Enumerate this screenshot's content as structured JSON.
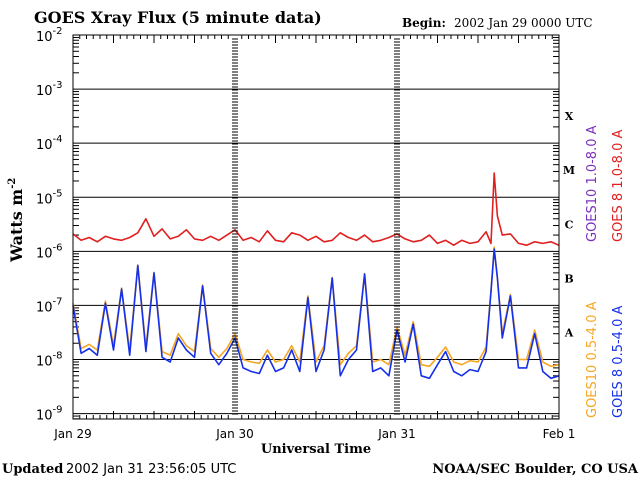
{
  "chart_data": {
    "type": "line",
    "title": "GOES Xray Flux (5 minute data)",
    "begin_label": "Begin:",
    "begin_value": "2002 Jan 29 0000 UTC",
    "xlabel": "Universal Time",
    "ylabel": "Watts m",
    "ylabel_exp": "-2",
    "x_ticks": [
      "Jan 29",
      "Jan 30",
      "Jan 31",
      "Feb 1"
    ],
    "x_domain_days": [
      0,
      3
    ],
    "y_scale": "log",
    "y_ticks": [
      {
        "base": "10",
        "exp": "-2"
      },
      {
        "base": "10",
        "exp": "-3"
      },
      {
        "base": "10",
        "exp": "-4"
      },
      {
        "base": "10",
        "exp": "-5"
      },
      {
        "base": "10",
        "exp": "-6"
      },
      {
        "base": "10",
        "exp": "-7"
      },
      {
        "base": "10",
        "exp": "-8"
      },
      {
        "base": "10",
        "exp": "-9"
      }
    ],
    "ylim_exp": [
      -9.1,
      -2
    ],
    "grid": "horizontal",
    "flare_classes": [
      "X",
      "M",
      "C",
      "B",
      "A"
    ],
    "legend_right": [
      {
        "label": "GOES10 1.0-8.0 A",
        "color": "#7B2FBE"
      },
      {
        "label": "GOES 8 1.0-8.0 A",
        "color": "#E02020"
      },
      {
        "label": "GOES10 0.5-4.0 A",
        "color": "#F5A623"
      },
      {
        "label": "GOES 8 0.5-4.0 A",
        "color": "#1530E8"
      }
    ],
    "series": [
      {
        "name": "GOES 8 1.0-8.0 A",
        "color": "#E02020",
        "x": [
          0,
          0.05,
          0.1,
          0.15,
          0.2,
          0.25,
          0.3,
          0.35,
          0.4,
          0.45,
          0.5,
          0.55,
          0.6,
          0.65,
          0.7,
          0.75,
          0.8,
          0.85,
          0.9,
          0.95,
          1.0,
          1.05,
          1.1,
          1.15,
          1.2,
          1.25,
          1.3,
          1.35,
          1.4,
          1.45,
          1.5,
          1.55,
          1.6,
          1.65,
          1.7,
          1.75,
          1.8,
          1.85,
          1.9,
          1.95,
          2.0,
          2.05,
          2.1,
          2.15,
          2.2,
          2.25,
          2.3,
          2.35,
          2.4,
          2.45,
          2.5,
          2.55,
          2.58,
          2.6,
          2.62,
          2.65,
          2.7,
          2.75,
          2.8,
          2.85,
          2.9,
          2.95,
          3.0
        ],
        "y": [
          2.1e-06,
          1.6e-06,
          1.8e-06,
          1.5e-06,
          1.9e-06,
          1.7e-06,
          1.6e-06,
          1.8e-06,
          2.2e-06,
          4e-06,
          1.9e-06,
          2.6e-06,
          1.7e-06,
          1.9e-06,
          2.5e-06,
          1.7e-06,
          1.6e-06,
          1.9e-06,
          1.6e-06,
          2e-06,
          2.5e-06,
          1.6e-06,
          1.8e-06,
          1.5e-06,
          2.4e-06,
          1.6e-06,
          1.5e-06,
          2.2e-06,
          2e-06,
          1.6e-06,
          1.9e-06,
          1.5e-06,
          1.6e-06,
          2.2e-06,
          1.8e-06,
          1.6e-06,
          2e-06,
          1.5e-06,
          1.6e-06,
          1.8e-06,
          2.1e-06,
          1.7e-06,
          1.5e-06,
          1.6e-06,
          2e-06,
          1.4e-06,
          1.6e-06,
          1.3e-06,
          1.6e-06,
          1.4e-06,
          1.5e-06,
          2.3e-06,
          1.4e-06,
          2.8e-05,
          4.5e-06,
          2e-06,
          2.1e-06,
          1.4e-06,
          1.3e-06,
          1.5e-06,
          1.4e-06,
          1.5e-06,
          1.3e-06
        ]
      },
      {
        "name": "GOES 8 0.5-4.0 A",
        "color": "#1530E8",
        "x": [
          0,
          0.05,
          0.1,
          0.15,
          0.2,
          0.25,
          0.3,
          0.35,
          0.4,
          0.45,
          0.5,
          0.55,
          0.6,
          0.65,
          0.7,
          0.75,
          0.8,
          0.85,
          0.9,
          0.95,
          1.0,
          1.05,
          1.1,
          1.15,
          1.2,
          1.25,
          1.3,
          1.35,
          1.4,
          1.45,
          1.5,
          1.55,
          1.6,
          1.65,
          1.7,
          1.75,
          1.8,
          1.85,
          1.9,
          1.95,
          2.0,
          2.05,
          2.1,
          2.15,
          2.2,
          2.25,
          2.3,
          2.35,
          2.4,
          2.45,
          2.5,
          2.55,
          2.58,
          2.6,
          2.62,
          2.65,
          2.7,
          2.75,
          2.8,
          2.85,
          2.9,
          2.95,
          3.0
        ],
        "y": [
          1e-07,
          1.3e-08,
          1.6e-08,
          1.2e-08,
          1.1e-07,
          1.5e-08,
          2e-07,
          1.2e-08,
          5.5e-07,
          1.4e-08,
          4e-07,
          1.1e-08,
          9e-09,
          2.5e-08,
          1.5e-08,
          1.1e-08,
          2.3e-07,
          1.3e-08,
          8e-09,
          1.3e-08,
          2.5e-08,
          7e-09,
          6e-09,
          5.5e-09,
          1.2e-08,
          6e-09,
          7e-09,
          1.5e-08,
          6e-09,
          1.4e-07,
          6e-09,
          1.5e-08,
          3.2e-07,
          5e-09,
          1e-08,
          1.5e-08,
          3.8e-07,
          6e-09,
          7e-09,
          5e-09,
          3.5e-08,
          9e-09,
          4.5e-08,
          5e-09,
          4.5e-09,
          8e-09,
          1.4e-08,
          6e-09,
          5e-09,
          6.5e-09,
          6e-09,
          1.4e-08,
          1.8e-07,
          1.1e-06,
          3.2e-07,
          2.5e-08,
          1.5e-07,
          7e-09,
          7e-09,
          3e-08,
          6e-09,
          4.5e-09,
          5e-09
        ]
      },
      {
        "name": "GOES10 0.5-4.0 A",
        "color": "#F5A623",
        "x": [
          0,
          0.05,
          0.1,
          0.15,
          0.2,
          0.25,
          0.3,
          0.35,
          0.4,
          0.45,
          0.5,
          0.55,
          0.6,
          0.65,
          0.7,
          0.75,
          0.8,
          0.85,
          0.9,
          0.95,
          1.0,
          1.05,
          1.1,
          1.15,
          1.2,
          1.25,
          1.3,
          1.35,
          1.4,
          1.45,
          1.5,
          1.55,
          1.6,
          1.65,
          1.7,
          1.75,
          1.8,
          1.85,
          1.9,
          1.95,
          2.0,
          2.05,
          2.1,
          2.15,
          2.2,
          2.25,
          2.3,
          2.35,
          2.4,
          2.45,
          2.5,
          2.55,
          2.58,
          2.6,
          2.62,
          2.65,
          2.7,
          2.75,
          2.8,
          2.85,
          2.9,
          2.95,
          3.0
        ],
        "y": [
          1.1e-07,
          1.6e-08,
          1.9e-08,
          1.5e-08,
          1.2e-07,
          1.8e-08,
          2.1e-07,
          1.5e-08,
          5.6e-07,
          1.7e-08,
          4.1e-07,
          1.4e-08,
          1.2e-08,
          3e-08,
          1.8e-08,
          1.4e-08,
          2.4e-07,
          1.6e-08,
          1.1e-08,
          1.6e-08,
          3e-08,
          1e-08,
          9e-09,
          8.5e-09,
          1.5e-08,
          9e-09,
          1e-08,
          1.8e-08,
          9e-09,
          1.5e-07,
          9e-09,
          1.8e-08,
          3.3e-07,
          8e-09,
          1.3e-08,
          1.8e-08,
          3.9e-07,
          9e-09,
          1e-08,
          8e-09,
          4e-08,
          1.2e-08,
          5e-08,
          8e-09,
          7.5e-09,
          1.1e-08,
          1.7e-08,
          9e-09,
          8e-09,
          9.5e-09,
          9e-09,
          1.7e-08,
          1.9e-07,
          1.2e-06,
          3.3e-07,
          3e-08,
          1.6e-07,
          1e-08,
          1e-08,
          3.5e-08,
          9e-09,
          7.5e-09,
          8e-09
        ]
      }
    ]
  },
  "footer": {
    "updated_label": "Updated",
    "updated_value": "2002 Jan 31 23:56:05 UTC",
    "source": "NOAA/SEC Boulder, CO USA"
  }
}
